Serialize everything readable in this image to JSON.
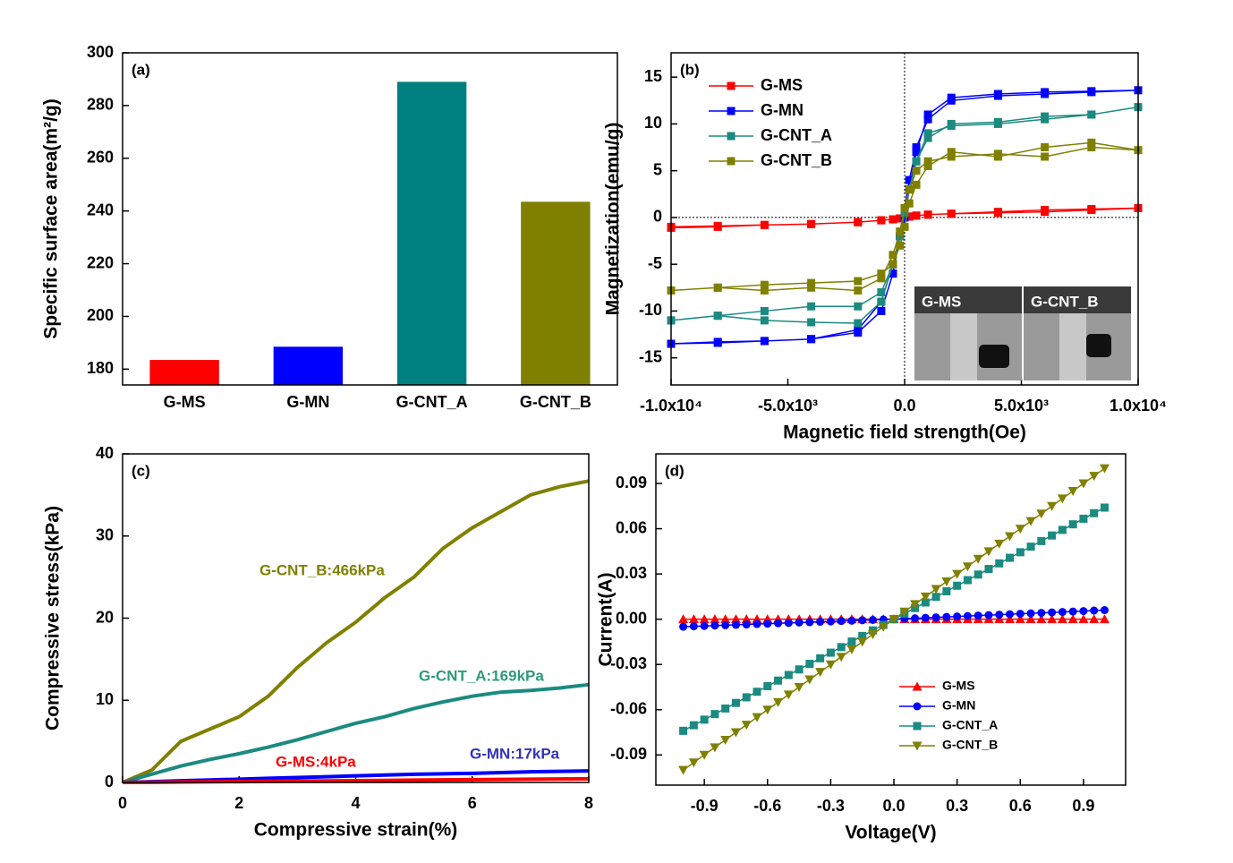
{
  "chart_data": [
    {
      "type": "bar",
      "label": "(a)",
      "ylabel": "Specific surface area(m²/g)",
      "categories": [
        "G-MS",
        "G-MN",
        "G-CNT_A",
        "G-CNT_B"
      ],
      "values": [
        183.5,
        188.5,
        289,
        243.5
      ],
      "colors": [
        "#ff0000",
        "#0000ff",
        "#008080",
        "#808000"
      ],
      "ylim": [
        174,
        300
      ],
      "yticks": [
        180,
        200,
        220,
        240,
        260,
        280,
        300
      ]
    },
    {
      "type": "line",
      "label": "(b)",
      "xlabel": "Magnetic field strength(Oe)",
      "ylabel": "Magnetization(emu/g)",
      "marker": "square",
      "legend": "upper left",
      "inset_labels": [
        "G-MS",
        "G-CNT_B"
      ],
      "x": [
        -10000,
        -8000,
        -6000,
        -4000,
        -2000,
        -1000,
        -500,
        -200,
        0,
        200,
        500,
        1000,
        2000,
        4000,
        6000,
        8000,
        10000,
        8000,
        6000,
        4000,
        2000,
        1000,
        500,
        200,
        0,
        -200,
        -500,
        -1000,
        -2000,
        -4000,
        -6000,
        -8000,
        -10000
      ],
      "series": [
        {
          "name": "G-MS",
          "color": "#ff0000",
          "values": [
            -1,
            -0.9,
            -0.8,
            -0.7,
            -0.5,
            -0.3,
            -0.2,
            -0.1,
            0,
            0.1,
            0.2,
            0.3,
            0.4,
            0.5,
            0.6,
            0.8,
            1,
            0.9,
            0.8,
            0.6,
            0.4,
            0.3,
            0.2,
            0.1,
            0,
            -0.1,
            -0.2,
            -0.3,
            -0.5,
            -0.7,
            -0.8,
            -1,
            -1.1
          ]
        },
        {
          "name": "G-MN",
          "color": "#0000ff",
          "values": [
            -13.5,
            -13.3,
            -13.2,
            -13,
            -12,
            -9,
            -5,
            -2,
            0,
            3,
            7,
            11,
            12.8,
            13.2,
            13.4,
            13.5,
            13.6,
            13.4,
            13.2,
            13,
            12.5,
            10.5,
            7.5,
            4,
            1,
            -2,
            -6,
            -10,
            -12.3,
            -13,
            -13.2,
            -13.4,
            -13.5
          ]
        },
        {
          "name": "G-CNT_A",
          "color": "#1b8a80",
          "values": [
            -11,
            -10.5,
            -11,
            -11.2,
            -11.3,
            -9,
            -5,
            -2,
            0.5,
            3,
            6,
            8.5,
            10,
            10.2,
            10.8,
            11,
            11.8,
            11,
            10.5,
            10,
            9.8,
            9,
            6,
            3,
            0.5,
            -2,
            -5,
            -8,
            -9.5,
            -9.5,
            -10,
            -10.5,
            -11
          ]
        },
        {
          "name": "G-CNT_B",
          "color": "#808000",
          "values": [
            -7.8,
            -7.5,
            -7.8,
            -7.5,
            -7.8,
            -6.5,
            -4,
            -1.5,
            1,
            3,
            5,
            6,
            6.5,
            6.8,
            6.5,
            7.5,
            7.2,
            8,
            7.5,
            6.5,
            7,
            5.5,
            3.5,
            1.5,
            -1,
            -3,
            -5,
            -6,
            -6.8,
            -7,
            -7.2,
            -7.5,
            -7.8
          ]
        }
      ],
      "xlim": [
        -10000,
        10000
      ],
      "xticks": [
        {
          "value": -10000,
          "label": "-1.0x10⁴"
        },
        {
          "value": -5000,
          "label": "-5.0x10³"
        },
        {
          "value": 0,
          "label": "0.0"
        },
        {
          "value": 5000,
          "label": "5.0x10³"
        },
        {
          "value": 10000,
          "label": "1.0x10⁴"
        }
      ],
      "ylim": [
        -17.9,
        17.6
      ],
      "yticks": [
        -15,
        -10,
        -5,
        0,
        5,
        10,
        15
      ]
    },
    {
      "type": "line",
      "label": "(c)",
      "xlabel": "Compressive strain(%)",
      "ylabel": "Compressive stress(kPa)",
      "x": [
        0,
        0.5,
        1,
        1.5,
        2,
        2.5,
        3,
        3.5,
        4,
        4.5,
        5,
        5.5,
        6,
        6.5,
        7,
        7.5,
        8
      ],
      "series": [
        {
          "name": "G-CNT_B",
          "color": "#808000",
          "values": [
            0,
            1.5,
            5,
            6.5,
            8,
            10.5,
            14,
            17,
            19.5,
            22.5,
            25,
            28.5,
            31,
            33,
            35,
            36,
            36.7
          ]
        },
        {
          "name": "G-CNT_A",
          "color": "#1b8a80",
          "values": [
            0,
            1,
            2,
            2.8,
            3.5,
            4.3,
            5.2,
            6.2,
            7.2,
            8,
            9,
            9.8,
            10.5,
            11,
            11.2,
            11.5,
            11.9
          ]
        },
        {
          "name": "G-MN",
          "color": "#0000ff",
          "values": [
            0,
            0.1,
            0.2,
            0.3,
            0.4,
            0.5,
            0.6,
            0.7,
            0.8,
            0.9,
            1,
            1.05,
            1.1,
            1.2,
            1.3,
            1.35,
            1.4
          ]
        },
        {
          "name": "G-MS",
          "color": "#ff0000",
          "values": [
            0,
            0.02,
            0.05,
            0.08,
            0.1,
            0.13,
            0.16,
            0.19,
            0.22,
            0.25,
            0.28,
            0.31,
            0.34,
            0.37,
            0.4,
            0.42,
            0.45
          ]
        }
      ],
      "annotations": [
        {
          "text": "G-CNT_B:466kPa",
          "color": "#808000"
        },
        {
          "text": "G-CNT_A:169kPa",
          "color": "#2e9a7a"
        },
        {
          "text": "G-MS:4kPa",
          "color": "#ff0000"
        },
        {
          "text": "G-MN:17kPa",
          "color": "#3333bb"
        }
      ],
      "xlim": [
        0,
        8
      ],
      "xticks": [
        0,
        2,
        4,
        6,
        8
      ],
      "ylim": [
        0,
        40
      ],
      "yticks": [
        0,
        10,
        20,
        30,
        40
      ]
    },
    {
      "type": "line",
      "label": "(d)",
      "xlabel": "Voltage(V)",
      "ylabel": "Current(A)",
      "legend": "lower center",
      "x": [
        -1,
        -0.95,
        -0.9,
        -0.85,
        -0.8,
        -0.75,
        -0.7,
        -0.65,
        -0.6,
        -0.55,
        -0.5,
        -0.45,
        -0.4,
        -0.35,
        -0.3,
        -0.25,
        -0.2,
        -0.15,
        -0.1,
        -0.05,
        0,
        0.05,
        0.1,
        0.15,
        0.2,
        0.25,
        0.3,
        0.35,
        0.4,
        0.45,
        0.5,
        0.55,
        0.6,
        0.65,
        0.7,
        0.75,
        0.8,
        0.85,
        0.9,
        0.95,
        1
      ],
      "series": [
        {
          "name": "G-MS",
          "color": "#ff0000",
          "marker": "triangle-up",
          "values": [
            0,
            0,
            0,
            0,
            0,
            0,
            0,
            0,
            0,
            0,
            0,
            0,
            0,
            0,
            0,
            0,
            0,
            0,
            0,
            0,
            0,
            0,
            0,
            0,
            0,
            0,
            0,
            0,
            0,
            0,
            0,
            0,
            0,
            0,
            0,
            0,
            0,
            0,
            0,
            0,
            0
          ]
        },
        {
          "name": "G-MN",
          "color": "#0000ff",
          "marker": "circle",
          "values": [
            -0.005,
            -0.0047,
            -0.0045,
            -0.0042,
            -0.004,
            -0.0037,
            -0.0035,
            -0.0032,
            -0.003,
            -0.0027,
            -0.0025,
            -0.0022,
            -0.002,
            -0.0017,
            -0.0015,
            -0.0012,
            -0.001,
            -0.0007,
            -0.0005,
            -0.0002,
            0,
            0.0003,
            0.0006,
            0.0009,
            0.0012,
            0.0015,
            0.0018,
            0.0021,
            0.0024,
            0.0027,
            0.003,
            0.0033,
            0.0036,
            0.0039,
            0.0042,
            0.0045,
            0.0048,
            0.0051,
            0.0054,
            0.0057,
            0.006
          ]
        },
        {
          "name": "G-CNT_A",
          "color": "#1b8a80",
          "marker": "square",
          "values": [
            -0.074,
            -0.0703,
            -0.0666,
            -0.0629,
            -0.0592,
            -0.0555,
            -0.0518,
            -0.0481,
            -0.0444,
            -0.0407,
            -0.037,
            -0.0333,
            -0.0296,
            -0.0259,
            -0.0222,
            -0.0185,
            -0.0148,
            -0.0111,
            -0.0074,
            -0.0037,
            0,
            0.0037,
            0.0074,
            0.0111,
            0.0148,
            0.0185,
            0.0222,
            0.0259,
            0.0296,
            0.0333,
            0.037,
            0.0407,
            0.0444,
            0.0481,
            0.0518,
            0.0555,
            0.0592,
            0.0629,
            0.0666,
            0.0703,
            0.074
          ]
        },
        {
          "name": "G-CNT_B",
          "color": "#808000",
          "marker": "triangle-down",
          "values": [
            -0.1,
            -0.095,
            -0.09,
            -0.085,
            -0.08,
            -0.075,
            -0.07,
            -0.065,
            -0.06,
            -0.055,
            -0.05,
            -0.045,
            -0.04,
            -0.035,
            -0.03,
            -0.025,
            -0.02,
            -0.015,
            -0.01,
            -0.005,
            0,
            0.005,
            0.01,
            0.015,
            0.02,
            0.025,
            0.03,
            0.035,
            0.04,
            0.045,
            0.05,
            0.055,
            0.06,
            0.065,
            0.07,
            0.075,
            0.08,
            0.085,
            0.09,
            0.095,
            0.1
          ]
        }
      ],
      "xlim": [
        -1.13,
        1.1
      ],
      "xticks": [
        -0.9,
        -0.6,
        -0.3,
        {
          "value": 0,
          "label": "0.0"
        },
        0.3,
        0.6,
        0.9
      ],
      "ylim": [
        -0.11,
        0.1096
      ],
      "yticks": [
        -0.09,
        -0.06,
        -0.03,
        {
          "value": 0,
          "label": "0.00"
        },
        0.03,
        0.06,
        0.09
      ]
    }
  ]
}
